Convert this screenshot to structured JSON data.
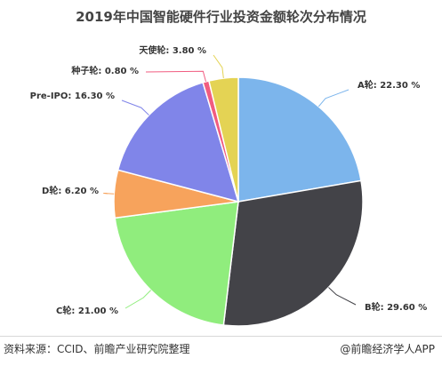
{
  "chart_data": {
    "type": "pie",
    "title": "2019年中国智能硬件行业投资金额轮次分布情况",
    "categories": [
      "A轮",
      "B轮",
      "C轮",
      "D轮",
      "Pre-IPO",
      "种子轮",
      "天使轮"
    ],
    "values": [
      22.3,
      29.6,
      21.0,
      6.2,
      16.3,
      0.8,
      3.8
    ],
    "labels": [
      "A轮: 22.30 %",
      "B轮: 29.60 %",
      "C轮: 21.00 %",
      "D轮: 6.20 %",
      "Pre-IPO: 16.30 %",
      "种子轮: 0.80 %",
      "天使轮: 3.80 %"
    ],
    "colors": [
      "#7cb5ec",
      "#434348",
      "#90ed7d",
      "#f7a35c",
      "#8085e9",
      "#f15c80",
      "#e4d354"
    ],
    "legend": "none"
  },
  "footer": {
    "source": "资料来源：CCID、前瞻产业研究院整理",
    "brand": "@前瞻经济学人APP"
  }
}
